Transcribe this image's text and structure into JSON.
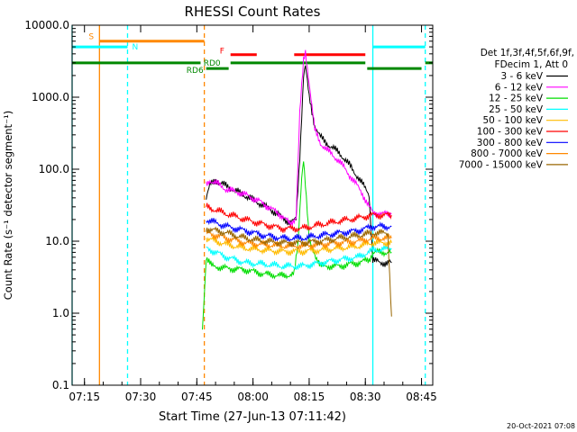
{
  "chart_data": {
    "type": "line",
    "title": "RHESSI Count Rates",
    "xlabel": "Start Time (27-Jun-13 07:11:42)",
    "ylabel": "Count Rate (s⁻¹ detector segment⁻¹)",
    "yscale": "log",
    "ylim": [
      0.1,
      10000
    ],
    "xlim": [
      "07:11:42",
      "08:48:00"
    ],
    "x_ticks": [
      "07:15",
      "07:30",
      "07:45",
      "08:00",
      "08:15",
      "08:30",
      "08:45"
    ],
    "y_ticks": [
      "0.1",
      "1.0",
      "10.0",
      "100.0",
      "1000.0",
      "10000.0"
    ],
    "timestamp": "20-Oct-2021 07:08",
    "legend": {
      "position": "right",
      "header": [
        "Det 1f,3f,4f,5f,6f,9f,",
        "FDecim 1, Att 0"
      ],
      "entries": [
        {
          "label": "3 - 6 keV",
          "color": "#000000"
        },
        {
          "label": "6 - 12 keV",
          "color": "#ff00ff"
        },
        {
          "label": "12 - 25 keV",
          "color": "#00dd00"
        },
        {
          "label": "25 - 50 keV",
          "color": "#00ffff"
        },
        {
          "label": "50 - 100 keV",
          "color": "#ffbb00"
        },
        {
          "label": "100 - 300 keV",
          "color": "#ff0000"
        },
        {
          "label": "300 - 800 keV",
          "color": "#0000ff"
        },
        {
          "label": "800 - 7000 keV",
          "color": "#ff8800"
        },
        {
          "label": "7000 - 15000 keV",
          "color": "#996600"
        }
      ]
    },
    "flag_bars": [
      {
        "label": "S",
        "color": "#ff8800",
        "y": 6000,
        "segments": [
          [
            "07:19:00",
            "07:47:00"
          ]
        ]
      },
      {
        "label": "N",
        "color": "#00ffff",
        "y": 5000,
        "segments": [
          [
            "07:11:42",
            "07:26:30"
          ],
          [
            "08:32:00",
            "08:46:00"
          ]
        ]
      },
      {
        "label": "F",
        "color": "#ff0000",
        "y": 3900,
        "segments": [
          [
            "07:54:00",
            "08:01:00"
          ],
          [
            "08:11:00",
            "08:30:00"
          ]
        ]
      },
      {
        "label": "RD0",
        "color": "#008800",
        "y": 3000,
        "segments": [
          [
            "07:11:42",
            "07:46:00"
          ],
          [
            "07:54:00",
            "08:30:00"
          ],
          [
            "08:46:00",
            "08:48:00"
          ]
        ]
      },
      {
        "label": "RD6",
        "color": "#008800",
        "y": 2500,
        "segments": [
          [
            "07:47:30",
            "07:53:30"
          ],
          [
            "08:30:30",
            "08:45:00"
          ]
        ]
      }
    ],
    "vlines": [
      {
        "time": "07:11:42",
        "color": "#00ffff",
        "style": "solid"
      },
      {
        "time": "07:19:00",
        "color": "#ff8800",
        "style": "solid"
      },
      {
        "time": "07:26:30",
        "color": "#00ffff",
        "style": "dashed"
      },
      {
        "time": "07:47:00",
        "color": "#ff8800",
        "style": "dashed"
      },
      {
        "time": "08:32:00",
        "color": "#00ffff",
        "style": "solid"
      },
      {
        "time": "08:46:00",
        "color": "#00ffff",
        "style": "dashed"
      }
    ],
    "series": [
      {
        "name": "3 - 6 keV",
        "color": "#000000",
        "x": [
          "07:47:30",
          "07:48:30",
          "07:50:00",
          "07:53:00",
          "07:56:00",
          "07:59:00",
          "08:02:00",
          "08:05:00",
          "08:08:00",
          "08:10:00",
          "08:11:30",
          "08:12:30",
          "08:13:30",
          "08:14:00",
          "08:15:00",
          "08:16:30",
          "08:18:00",
          "08:20:00",
          "08:23:00",
          "08:26:00",
          "08:29:00",
          "08:31:00",
          "08:32:00",
          "08:34:00",
          "08:37:00"
        ],
        "y": [
          40,
          60,
          70,
          58,
          48,
          40,
          33,
          27,
          21,
          18,
          20,
          150,
          2000,
          2700,
          1000,
          400,
          280,
          220,
          170,
          110,
          65,
          45,
          5.5,
          5,
          5
        ]
      },
      {
        "name": "6 - 12 keV",
        "color": "#ff00ff",
        "x": [
          "07:47:30",
          "07:48:30",
          "07:50:00",
          "07:53:00",
          "07:56:00",
          "07:59:00",
          "08:02:00",
          "08:05:00",
          "08:08:00",
          "08:10:00",
          "08:11:30",
          "08:12:30",
          "08:13:30",
          "08:14:00",
          "08:15:00",
          "08:16:30",
          "08:18:00",
          "08:20:00",
          "08:23:00",
          "08:26:00",
          "08:29:00",
          "08:31:00",
          "08:32:00",
          "08:34:00",
          "08:37:00"
        ],
        "y": [
          60,
          70,
          65,
          52,
          48,
          42,
          35,
          28,
          22,
          17,
          22,
          600,
          3200,
          4300,
          1600,
          350,
          230,
          180,
          130,
          80,
          48,
          30,
          25,
          24,
          24
        ]
      },
      {
        "name": "12 - 25 keV",
        "color": "#00dd00",
        "x": [
          "07:46:30",
          "07:47:30",
          "07:49:00",
          "07:53:00",
          "07:58:00",
          "08:03:00",
          "08:08:00",
          "08:11:00",
          "08:12:00",
          "08:13:00",
          "08:13:30",
          "08:14:00",
          "08:15:00",
          "08:18:00",
          "08:23:00",
          "08:28:00",
          "08:31:00",
          "08:32:00",
          "08:34:00",
          "08:37:00"
        ],
        "y": [
          0.6,
          6.0,
          4.5,
          4.2,
          4.0,
          3.5,
          3.3,
          3.5,
          9,
          80,
          140,
          60,
          10,
          4.5,
          4.5,
          5,
          5.5,
          7,
          7,
          7
        ]
      },
      {
        "name": "25 - 50 keV",
        "color": "#00ffff",
        "x": [
          "07:47:30",
          "07:53:00",
          "07:58:00",
          "08:03:00",
          "08:08:00",
          "08:13:00",
          "08:18:00",
          "08:23:00",
          "08:28:00",
          "08:32:00",
          "08:37:00"
        ],
        "y": [
          8.0,
          6.0,
          5.0,
          4.8,
          4.5,
          4.5,
          5,
          5.5,
          6,
          7.5,
          8
        ]
      },
      {
        "name": "50 - 100 keV",
        "color": "#ffbb00",
        "x": [
          "07:47:30",
          "07:53:00",
          "07:58:00",
          "08:03:00",
          "08:08:00",
          "08:13:00",
          "08:18:00",
          "08:23:00",
          "08:28:00",
          "08:32:00",
          "08:37:00"
        ],
        "y": [
          11,
          9,
          8,
          7.5,
          7.2,
          7.2,
          7.5,
          8,
          8.5,
          9.5,
          9.5
        ]
      },
      {
        "name": "100 - 300 keV",
        "color": "#ff0000",
        "x": [
          "07:47:30",
          "07:53:00",
          "07:58:00",
          "08:03:00",
          "08:08:00",
          "08:13:00",
          "08:18:00",
          "08:23:00",
          "08:28:00",
          "08:32:00",
          "08:37:00"
        ],
        "y": [
          30,
          24,
          20,
          17,
          15,
          15,
          17,
          19,
          21,
          23,
          23
        ]
      },
      {
        "name": "300 - 800 keV",
        "color": "#0000ff",
        "x": [
          "07:47:30",
          "07:53:00",
          "07:58:00",
          "08:03:00",
          "08:08:00",
          "08:13:00",
          "08:18:00",
          "08:23:00",
          "08:28:00",
          "08:32:00",
          "08:37:00"
        ],
        "y": [
          20,
          16,
          14,
          12,
          11,
          11,
          12,
          13,
          14,
          16,
          16
        ]
      },
      {
        "name": "800 - 7000 keV",
        "color": "#ff8800",
        "x": [
          "07:47:30",
          "07:53:00",
          "07:58:00",
          "08:03:00",
          "08:08:00",
          "08:13:00",
          "08:18:00",
          "08:23:00",
          "08:28:00",
          "08:32:00",
          "08:37:00"
        ],
        "y": [
          13,
          11,
          9.5,
          9,
          8.6,
          8.6,
          9,
          9.5,
          10,
          11,
          11
        ]
      },
      {
        "name": "7000 - 15000 keV",
        "color": "#996600",
        "x": [
          "07:47:30",
          "07:53:00",
          "07:58:00",
          "08:03:00",
          "08:08:00",
          "08:13:00",
          "08:18:00",
          "08:23:00",
          "08:28:00",
          "08:32:00",
          "08:36:00",
          "08:37:00"
        ],
        "y": [
          15,
          13,
          11,
          10,
          9.5,
          9.5,
          10,
          11,
          12,
          13,
          13,
          0.9
        ]
      }
    ]
  }
}
